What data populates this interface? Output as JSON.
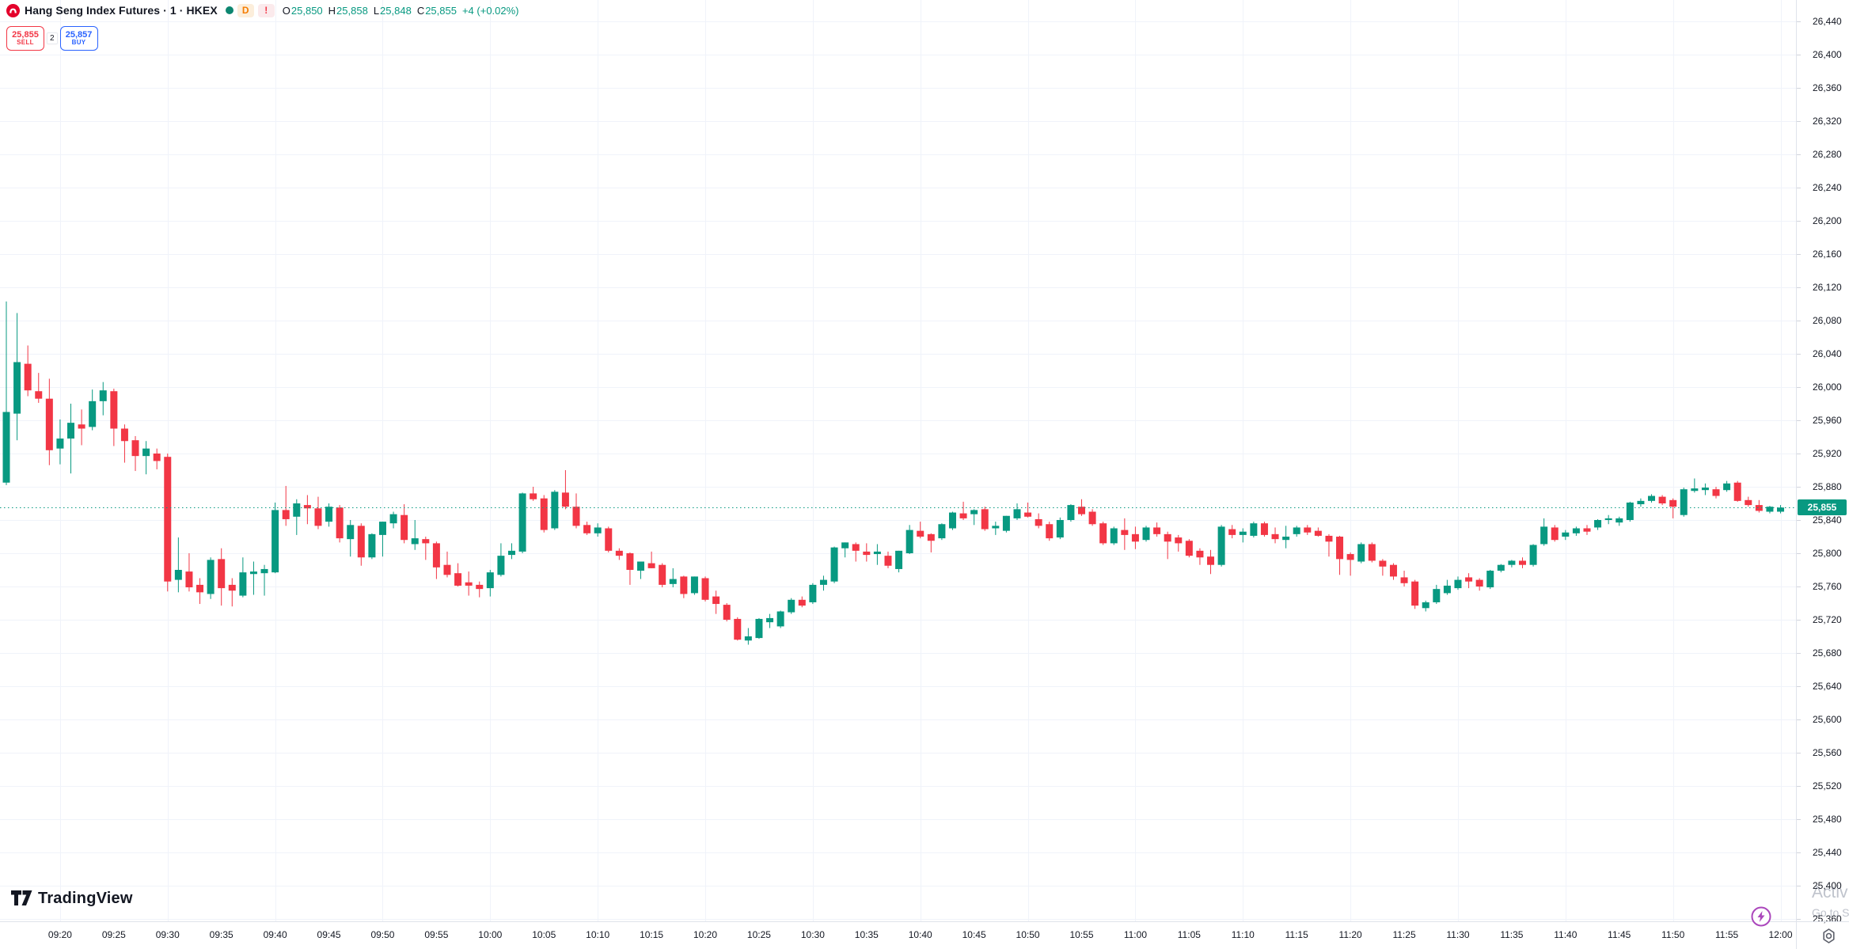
{
  "header": {
    "symbol_title": "Hang Seng Index Futures · 1 · HKEX",
    "badge_delay": "D",
    "badge_alert": "!",
    "ohlc": {
      "o_label": "O",
      "o": "25,850",
      "h_label": "H",
      "h": "25,858",
      "l_label": "L",
      "l": "25,848",
      "c_label": "C",
      "c": "25,855",
      "change": "+4 (+0.02%)"
    }
  },
  "trade_buttons": {
    "sell_price": "25,855",
    "sell_label": "SELL",
    "spread": "2",
    "buy_price": "25,857",
    "buy_label": "BUY"
  },
  "price_axis": {
    "labels": [
      "26,440",
      "26,400",
      "26,360",
      "26,320",
      "26,280",
      "26,240",
      "26,200",
      "26,160",
      "26,120",
      "26,080",
      "26,040",
      "26,000",
      "25,960",
      "25,920",
      "25,880",
      "25,840",
      "25,800",
      "25,760",
      "25,720",
      "25,680",
      "25,640",
      "25,600",
      "25,560",
      "25,520",
      "25,480",
      "25,440",
      "25,400",
      "25,360"
    ],
    "current_price": "25,855"
  },
  "time_axis": {
    "labels": [
      "09:20",
      "09:25",
      "09:30",
      "09:35",
      "09:40",
      "09:45",
      "09:50",
      "09:55",
      "10:00",
      "10:05",
      "10:10",
      "10:15",
      "10:20",
      "10:25",
      "10:30",
      "10:35",
      "10:40",
      "10:45",
      "10:50",
      "10:55",
      "11:00",
      "11:05",
      "11:10",
      "11:15",
      "11:20",
      "11:25",
      "11:30",
      "11:35",
      "11:40",
      "11:45",
      "11:50",
      "11:55",
      "12:00"
    ]
  },
  "logo_watermark": {
    "text": "TradingView"
  },
  "os_watermark": {
    "line1": "Activ",
    "line2": "Go to S"
  },
  "colors": {
    "up": "#089981",
    "down": "#F23645",
    "buy": "#2962FF",
    "sell": "#F23645",
    "grid": "#F0F3FA",
    "axis_text": "#131722",
    "current_price_bg": "#089981",
    "symbol_logo": "#E4002B"
  },
  "chart_data": {
    "type": "candlestick",
    "title": "Hang Seng Index Futures",
    "interval": "1",
    "exchange": "HKEX",
    "visible_price_range": [
      25360,
      26440
    ],
    "price_grid_step": 40,
    "time_grid_step_minutes": 10,
    "grid": true,
    "current_price": 25855,
    "ohlc_format": [
      "time",
      "open",
      "high",
      "low",
      "close"
    ],
    "candles": [
      [
        "09:15",
        25885,
        26103,
        25882,
        25970
      ],
      [
        "09:16",
        25968,
        26089,
        25936,
        26030
      ],
      [
        "09:17",
        26028,
        26050,
        25989,
        25996
      ],
      [
        "09:18",
        25995,
        26017,
        25981,
        25986
      ],
      [
        "09:19",
        25986,
        26010,
        25906,
        25924
      ],
      [
        "09:20",
        25926,
        25961,
        25907,
        25938
      ],
      [
        "09:21",
        25938,
        25980,
        25896,
        25957
      ],
      [
        "09:22",
        25955,
        25973,
        25930,
        25950
      ],
      [
        "09:23",
        25952,
        25997,
        25948,
        25983
      ],
      [
        "09:24",
        25983,
        26006,
        25966,
        25996
      ],
      [
        "09:25",
        25995,
        25998,
        25929,
        25950
      ],
      [
        "09:26",
        25950,
        25955,
        25909,
        25935
      ],
      [
        "09:27",
        25936,
        25941,
        25899,
        25917
      ],
      [
        "09:28",
        25917,
        25935,
        25895,
        25926
      ],
      [
        "09:29",
        25920,
        25926,
        25901,
        25911
      ],
      [
        "09:30",
        25916,
        25920,
        25754,
        25766
      ],
      [
        "09:31",
        25768,
        25819,
        25753,
        25780
      ],
      [
        "09:32",
        25778,
        25800,
        25754,
        25759
      ],
      [
        "09:33",
        25762,
        25770,
        25739,
        25753
      ],
      [
        "09:34",
        25751,
        25795,
        25745,
        25792
      ],
      [
        "09:35",
        25793,
        25806,
        25737,
        25758
      ],
      [
        "09:36",
        25762,
        25770,
        25736,
        25755
      ],
      [
        "09:37",
        25749,
        25795,
        25747,
        25777
      ],
      [
        "09:38",
        25775,
        25790,
        25750,
        25778
      ],
      [
        "09:39",
        25776,
        25786,
        25749,
        25781
      ],
      [
        "09:40",
        25777,
        25861,
        25776,
        25852
      ],
      [
        "09:41",
        25852,
        25881,
        25833,
        25841
      ],
      [
        "09:42",
        25844,
        25865,
        25822,
        25860
      ],
      [
        "09:43",
        25858,
        25870,
        25835,
        25854
      ],
      [
        "09:44",
        25854,
        25868,
        25829,
        25833
      ],
      [
        "09:45",
        25838,
        25860,
        25832,
        25856
      ],
      [
        "09:46",
        25855,
        25858,
        25813,
        25818
      ],
      [
        "09:47",
        25817,
        25840,
        25796,
        25834
      ],
      [
        "09:48",
        25833,
        25836,
        25785,
        25795
      ],
      [
        "09:49",
        25795,
        25824,
        25793,
        25823
      ],
      [
        "09:50",
        25822,
        25838,
        25796,
        25838
      ],
      [
        "09:51",
        25836,
        25850,
        25830,
        25847
      ],
      [
        "09:52",
        25846,
        25859,
        25812,
        25816
      ],
      [
        "09:53",
        25811,
        25840,
        25804,
        25818
      ],
      [
        "09:54",
        25817,
        25820,
        25792,
        25812
      ],
      [
        "09:55",
        25812,
        25814,
        25769,
        25783
      ],
      [
        "09:56",
        25786,
        25802,
        25771,
        25774
      ],
      [
        "09:57",
        25776,
        25788,
        25760,
        25761
      ],
      [
        "09:58",
        25765,
        25778,
        25749,
        25761
      ],
      [
        "09:59",
        25762,
        25766,
        25747,
        25757
      ],
      [
        "10:00",
        25758,
        25780,
        25748,
        25777
      ],
      [
        "10:01",
        25774,
        25812,
        25772,
        25797
      ],
      [
        "10:02",
        25798,
        25812,
        25793,
        25803
      ],
      [
        "10:03",
        25802,
        25873,
        25800,
        25872
      ],
      [
        "10:04",
        25872,
        25880,
        25863,
        25865
      ],
      [
        "10:05",
        25866,
        25870,
        25825,
        25828
      ],
      [
        "10:06",
        25830,
        25876,
        25828,
        25874
      ],
      [
        "10:07",
        25873,
        25900,
        25853,
        25856
      ],
      [
        "10:08",
        25856,
        25872,
        25830,
        25833
      ],
      [
        "10:09",
        25834,
        25838,
        25822,
        25824
      ],
      [
        "10:10",
        25824,
        25836,
        25820,
        25831
      ],
      [
        "10:11",
        25830,
        25832,
        25801,
        25803
      ],
      [
        "10:12",
        25803,
        25806,
        25792,
        25797
      ],
      [
        "10:13",
        25800,
        25801,
        25762,
        25780
      ],
      [
        "10:14",
        25779,
        25790,
        25769,
        25790
      ],
      [
        "10:15",
        25788,
        25802,
        25782,
        25782
      ],
      [
        "10:16",
        25786,
        25788,
        25759,
        25762
      ],
      [
        "10:17",
        25763,
        25782,
        25759,
        25769
      ],
      [
        "10:18",
        25772,
        25773,
        25746,
        25751
      ],
      [
        "10:19",
        25752,
        25772,
        25750,
        25772
      ],
      [
        "10:20",
        25770,
        25772,
        25742,
        25744
      ],
      [
        "10:21",
        25748,
        25755,
        25727,
        25739
      ],
      [
        "10:22",
        25738,
        25740,
        25718,
        25720
      ],
      [
        "10:23",
        25721,
        25723,
        25695,
        25696
      ],
      [
        "10:24",
        25695,
        25710,
        25690,
        25700
      ],
      [
        "10:25",
        25698,
        25722,
        25697,
        25721
      ],
      [
        "10:26",
        25717,
        25727,
        25710,
        25722
      ],
      [
        "10:27",
        25712,
        25731,
        25710,
        25730
      ],
      [
        "10:28",
        25729,
        25746,
        25727,
        25744
      ],
      [
        "10:29",
        25744,
        25748,
        25735,
        25737
      ],
      [
        "10:30",
        25741,
        25764,
        25739,
        25762
      ],
      [
        "10:31",
        25762,
        25773,
        25755,
        25768
      ],
      [
        "10:32",
        25766,
        25808,
        25764,
        25807
      ],
      [
        "10:33",
        25806,
        25813,
        25795,
        25813
      ],
      [
        "10:34",
        25811,
        25813,
        25790,
        25803
      ],
      [
        "10:35",
        25802,
        25812,
        25790,
        25798
      ],
      [
        "10:36",
        25799,
        25811,
        25786,
        25802
      ],
      [
        "10:37",
        25797,
        25802,
        25782,
        25785
      ],
      [
        "10:38",
        25781,
        25803,
        25777,
        25803
      ],
      [
        "10:39",
        25800,
        25834,
        25799,
        25828
      ],
      [
        "10:40",
        25827,
        25838,
        25818,
        25820
      ],
      [
        "10:41",
        25823,
        25824,
        25801,
        25815
      ],
      [
        "10:42",
        25818,
        25836,
        25816,
        25835
      ],
      [
        "10:43",
        25830,
        25850,
        25828,
        25849
      ],
      [
        "10:44",
        25848,
        25862,
        25840,
        25842
      ],
      [
        "10:45",
        25847,
        25853,
        25834,
        25852
      ],
      [
        "10:46",
        25853,
        25856,
        25827,
        25829
      ],
      [
        "10:47",
        25830,
        25838,
        25822,
        25833
      ],
      [
        "10:48",
        25827,
        25845,
        25825,
        25845
      ],
      [
        "10:49",
        25842,
        25860,
        25840,
        25853
      ],
      [
        "10:50",
        25849,
        25861,
        25843,
        25844
      ],
      [
        "10:51",
        25841,
        25848,
        25830,
        25833
      ],
      [
        "10:52",
        25835,
        25838,
        25815,
        25818
      ],
      [
        "10:53",
        25819,
        25843,
        25817,
        25840
      ],
      [
        "10:54",
        25840,
        25859,
        25838,
        25858
      ],
      [
        "10:55",
        25856,
        25865,
        25845,
        25847
      ],
      [
        "10:56",
        25850,
        25853,
        25833,
        25835
      ],
      [
        "10:57",
        25836,
        25838,
        25810,
        25812
      ],
      [
        "10:58",
        25812,
        25832,
        25810,
        25830
      ],
      [
        "10:59",
        25828,
        25842,
        25804,
        25822
      ],
      [
        "11:00",
        25823,
        25832,
        25805,
        25814
      ],
      [
        "11:01",
        25816,
        25833,
        25814,
        25831
      ],
      [
        "11:02",
        25831,
        25837,
        25820,
        25823
      ],
      [
        "11:03",
        25823,
        25826,
        25793,
        25814
      ],
      [
        "11:04",
        25819,
        25822,
        25802,
        25812
      ],
      [
        "11:05",
        25815,
        25817,
        25795,
        25797
      ],
      [
        "11:06",
        25803,
        25806,
        25786,
        25795
      ],
      [
        "11:07",
        25796,
        25804,
        25775,
        25786
      ],
      [
        "11:08",
        25786,
        25834,
        25784,
        25832
      ],
      [
        "11:09",
        25829,
        25834,
        25818,
        25822
      ],
      [
        "11:10",
        25822,
        25830,
        25813,
        25826
      ],
      [
        "11:11",
        25821,
        25838,
        25819,
        25836
      ],
      [
        "11:12",
        25836,
        25838,
        25820,
        25822
      ],
      [
        "11:13",
        25823,
        25831,
        25812,
        25817
      ],
      [
        "11:14",
        25816,
        25833,
        25806,
        25820
      ],
      [
        "11:15",
        25823,
        25833,
        25820,
        25831
      ],
      [
        "11:16",
        25831,
        25834,
        25822,
        25825
      ],
      [
        "11:17",
        25827,
        25831,
        25820,
        25821
      ],
      [
        "11:18",
        25821,
        25823,
        25796,
        25814
      ],
      [
        "11:19",
        25820,
        25821,
        25774,
        25793
      ],
      [
        "11:20",
        25799,
        25801,
        25773,
        25792
      ],
      [
        "11:21",
        25790,
        25813,
        25788,
        25811
      ],
      [
        "11:22",
        25811,
        25813,
        25789,
        25791
      ],
      [
        "11:23",
        25791,
        25793,
        25773,
        25784
      ],
      [
        "11:24",
        25786,
        25788,
        25768,
        25772
      ],
      [
        "11:25",
        25771,
        25779,
        25760,
        25764
      ],
      [
        "11:26",
        25766,
        25768,
        25733,
        25737
      ],
      [
        "11:27",
        25734,
        25743,
        25730,
        25741
      ],
      [
        "11:28",
        25741,
        25762,
        25739,
        25757
      ],
      [
        "11:29",
        25752,
        25768,
        25750,
        25761
      ],
      [
        "11:30",
        25758,
        25772,
        25756,
        25768
      ],
      [
        "11:31",
        25771,
        25776,
        25758,
        25766
      ],
      [
        "11:32",
        25768,
        25770,
        25755,
        25760
      ],
      [
        "11:33",
        25759,
        25780,
        25757,
        25779
      ],
      [
        "11:34",
        25779,
        25787,
        25777,
        25786
      ],
      [
        "11:35",
        25786,
        25792,
        25783,
        25791
      ],
      [
        "11:36",
        25791,
        25795,
        25782,
        25786
      ],
      [
        "11:37",
        25786,
        25811,
        25784,
        25810
      ],
      [
        "11:38",
        25811,
        25842,
        25809,
        25832
      ],
      [
        "11:39",
        25831,
        25834,
        25814,
        25816
      ],
      [
        "11:40",
        25820,
        25828,
        25816,
        25825
      ],
      [
        "11:41",
        25824,
        25832,
        25821,
        25830
      ],
      [
        "11:42",
        25830,
        25834,
        25822,
        25826
      ],
      [
        "11:43",
        25831,
        25841,
        25828,
        25840
      ],
      [
        "11:44",
        25840,
        25846,
        25835,
        25842
      ],
      [
        "11:45",
        25837,
        25844,
        25833,
        25842
      ],
      [
        "11:46",
        25840,
        25862,
        25838,
        25861
      ],
      [
        "11:47",
        25859,
        25866,
        25856,
        25863
      ],
      [
        "11:48",
        25863,
        25871,
        25861,
        25869
      ],
      [
        "11:49",
        25868,
        25870,
        25858,
        25860
      ],
      [
        "11:50",
        25864,
        25866,
        25842,
        25856
      ],
      [
        "11:51",
        25846,
        25879,
        25844,
        25877
      ],
      [
        "11:52",
        25875,
        25890,
        25873,
        25878
      ],
      [
        "11:53",
        25876,
        25884,
        25870,
        25879
      ],
      [
        "11:54",
        25877,
        25880,
        25866,
        25869
      ],
      [
        "11:55",
        25876,
        25887,
        25874,
        25884
      ],
      [
        "11:56",
        25885,
        25887,
        25862,
        25863
      ],
      [
        "11:57",
        25864,
        25868,
        25856,
        25858
      ],
      [
        "11:58",
        25858,
        25864,
        25849,
        25851
      ],
      [
        "11:59",
        25850,
        25857,
        25848,
        25856
      ],
      [
        "12:00",
        25850,
        25858,
        25848,
        25855
      ]
    ]
  }
}
